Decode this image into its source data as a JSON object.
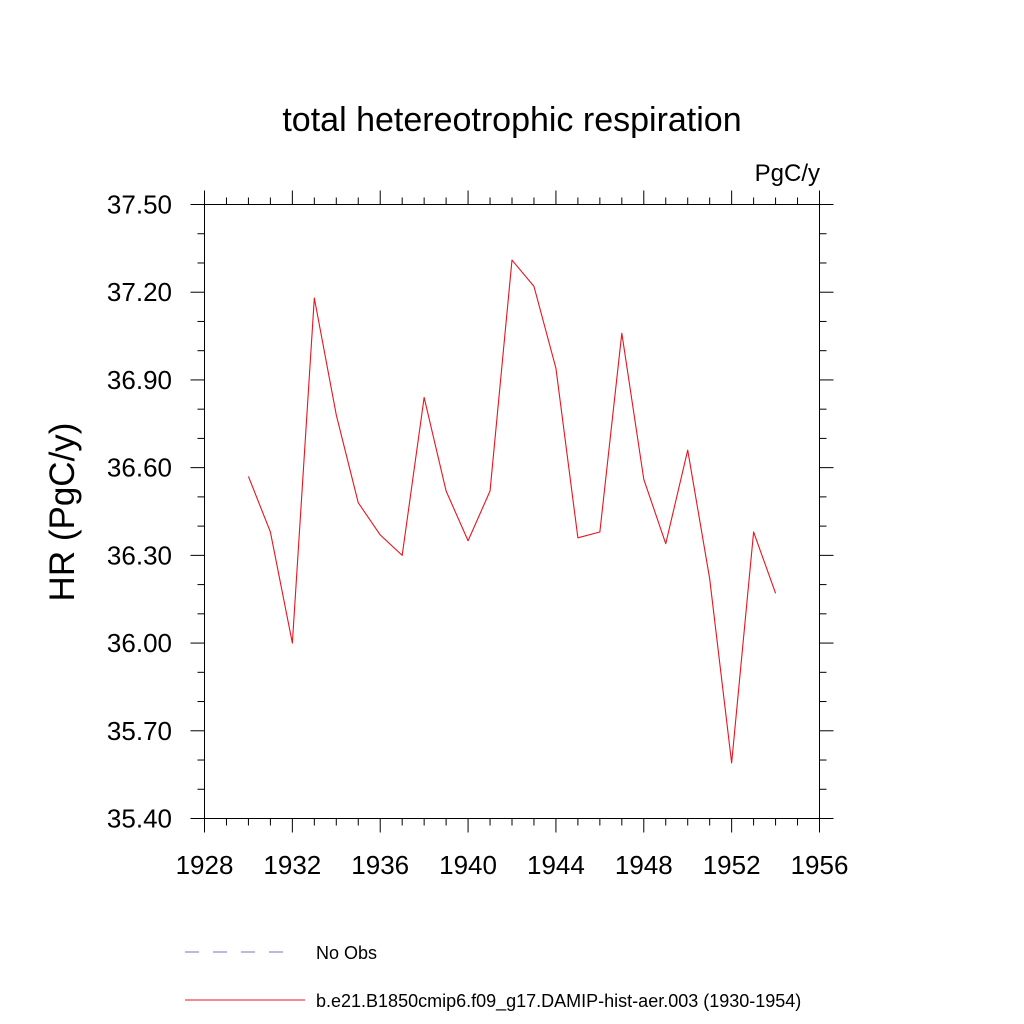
{
  "chart_data": {
    "type": "line",
    "title": "total hetereotrophic respiration",
    "units": "PgC/y",
    "ylabel": "HR  (PgC/y)",
    "xlabel": "",
    "xlim": [
      1928,
      1956
    ],
    "ylim": [
      35.4,
      37.5
    ],
    "x_ticks": [
      "1928",
      "1932",
      "1936",
      "1940",
      "1944",
      "1948",
      "1952",
      "1956"
    ],
    "y_ticks": [
      "35.40",
      "35.70",
      "36.00",
      "36.30",
      "36.60",
      "36.90",
      "37.20",
      "37.50"
    ],
    "grid": false,
    "legend_position": "bottom",
    "series": [
      {
        "name": "b.e21.B1850cmip6.f09_g17.DAMIP-hist-aer.003 (1930-1954)",
        "color": "#e8141e",
        "style": "solid",
        "x": [
          1930,
          1931,
          1932,
          1933,
          1934,
          1935,
          1936,
          1937,
          1938,
          1939,
          1940,
          1941,
          1942,
          1943,
          1944,
          1945,
          1946,
          1947,
          1948,
          1949,
          1950,
          1951,
          1952,
          1953,
          1954
        ],
        "y": [
          36.57,
          36.38,
          36.0,
          37.18,
          36.78,
          36.48,
          36.37,
          36.3,
          36.84,
          36.52,
          36.35,
          36.52,
          37.31,
          37.22,
          36.94,
          36.36,
          36.38,
          37.06,
          36.56,
          36.34,
          36.66,
          36.22,
          35.59,
          36.38,
          36.17
        ]
      }
    ],
    "legend": [
      {
        "label": "No Obs",
        "color": "#7b6fc4",
        "style": "dashed"
      },
      {
        "label": "b.e21.B1850cmip6.f09_g17.DAMIP-hist-aer.003 (1930-1954)",
        "color": "#e8141e",
        "style": "solid"
      }
    ]
  }
}
